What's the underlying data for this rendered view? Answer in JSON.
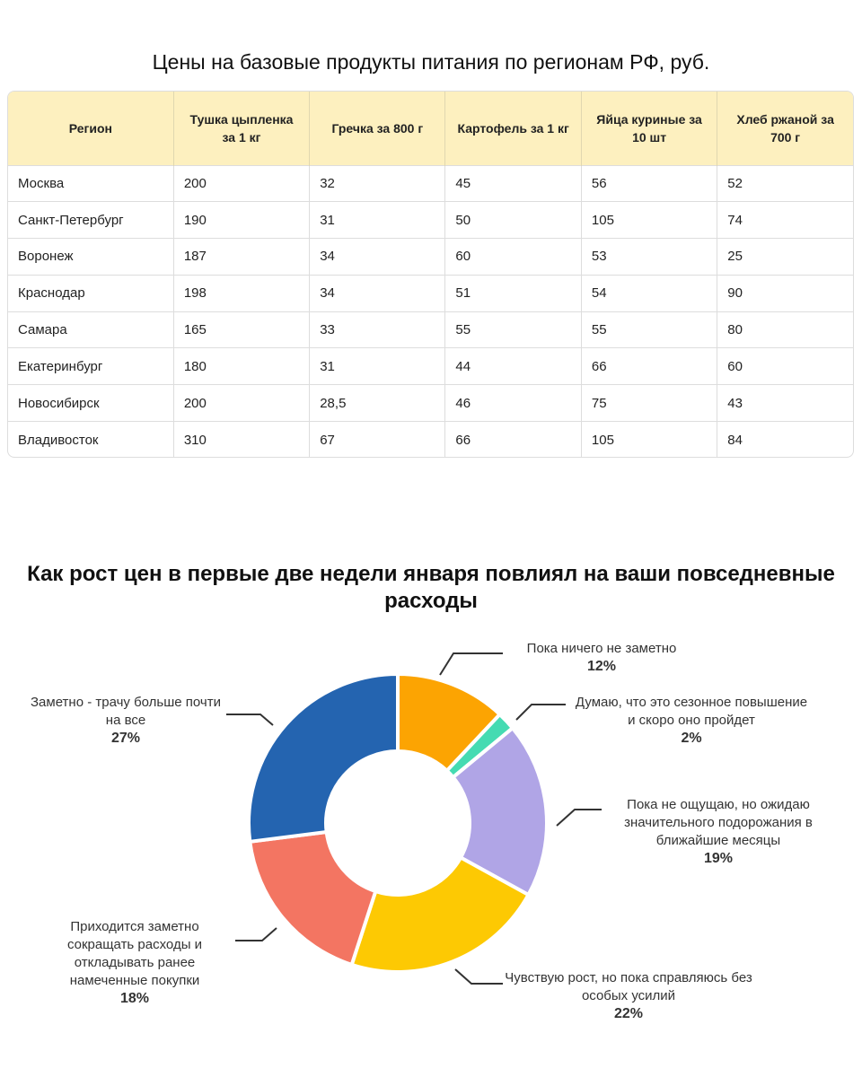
{
  "table": {
    "title": "Цены на базовые продукты питания по регионам РФ, руб.",
    "header_bg": "#fdf0bf",
    "columns": [
      "Регион",
      "Тушка цыпленка за 1 кг",
      "Гречка за 800 г",
      "Картофель за 1 кг",
      "Яйца куриные за 10 шт",
      "Хлеб ржаной за 700 г"
    ],
    "rows": [
      [
        "Москва",
        "200",
        "32",
        "45",
        "56",
        "52"
      ],
      [
        "Санкт-Петербург",
        "190",
        "31",
        "50",
        "105",
        "74"
      ],
      [
        "Воронеж",
        "187",
        "34",
        "60",
        "53",
        "25"
      ],
      [
        "Краснодар",
        "198",
        "34",
        "51",
        "54",
        "90"
      ],
      [
        "Самара",
        "165",
        "33",
        "55",
        "55",
        "80"
      ],
      [
        "Екатеринбург",
        "180",
        "31",
        "44",
        "66",
        "60"
      ],
      [
        "Новосибирск",
        "200",
        "28,5",
        "46",
        "75",
        "43"
      ],
      [
        "Владивосток",
        "310",
        "67",
        "66",
        "105",
        "84"
      ]
    ]
  },
  "chart_data": {
    "type": "pie",
    "donut": true,
    "title": "Как рост цен в первые две недели января повлиял на ваши повседневные расходы",
    "slices": [
      {
        "label": "Пока ничего не заметно",
        "value": 12,
        "pct": "12%",
        "color": "#fca402"
      },
      {
        "label": "Думаю, что это сезонное повышение и скоро оно пройдет",
        "value": 2,
        "pct": "2%",
        "color": "#45dbb2"
      },
      {
        "label": "Пока не ощущаю, но ожидаю значительного подорожания в ближайшие месяцы",
        "value": 19,
        "pct": "19%",
        "color": "#b0a5e6"
      },
      {
        "label": "Чувствую рост, но пока справляюсь без особых усилий",
        "value": 22,
        "pct": "22%",
        "color": "#fdc903"
      },
      {
        "label": "Приходится заметно сокращать расходы и откладывать ранее намеченные покупки",
        "value": 18,
        "pct": "18%",
        "color": "#f37562"
      },
      {
        "label": "Заметно - трачу больше почти на все",
        "value": 27,
        "pct": "27%",
        "color": "#2464b0"
      }
    ]
  }
}
